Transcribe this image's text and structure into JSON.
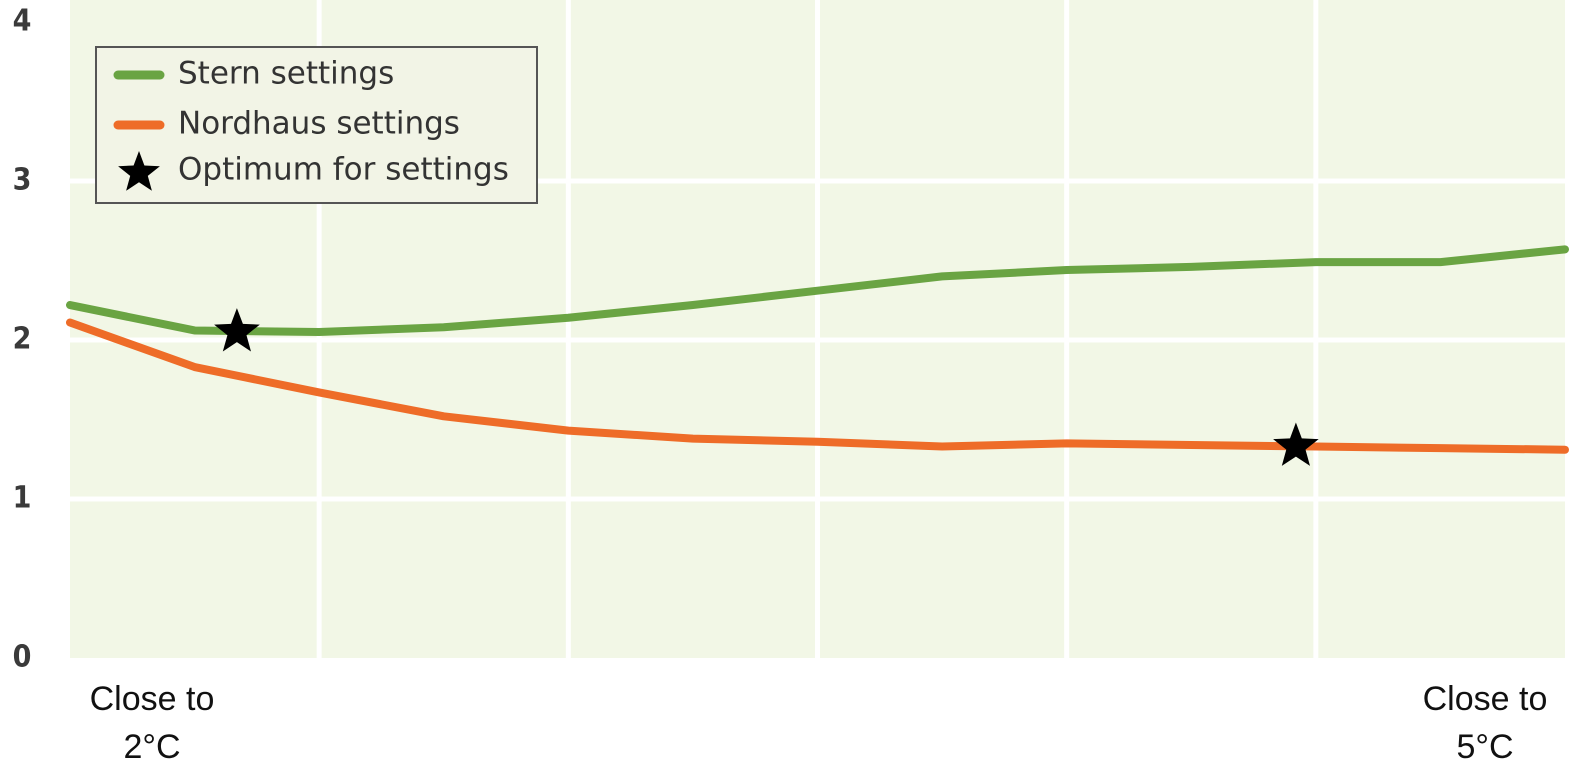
{
  "chart_data": {
    "type": "line",
    "x": [
      0,
      0.5,
      1,
      1.5,
      2,
      2.5,
      3,
      3.5,
      4,
      4.5,
      5,
      5.5,
      6
    ],
    "series": [
      {
        "name": "Stern settings",
        "color": "#6aa443",
        "values": [
          2.22,
          2.06,
          2.05,
          2.08,
          2.14,
          2.22,
          2.31,
          2.4,
          2.44,
          2.46,
          2.49,
          2.49,
          2.57
        ]
      },
      {
        "name": "Nordhaus settings",
        "color": "#ee6c28",
        "values": [
          2.11,
          1.83,
          1.67,
          1.52,
          1.43,
          1.38,
          1.36,
          1.33,
          1.35,
          1.34,
          1.33,
          1.32,
          1.31
        ]
      }
    ],
    "optima": {
      "name": "Optimum for settings",
      "color": "#000000",
      "x": [
        0.67,
        4.92
      ],
      "values": [
        2.05,
        1.33
      ]
    },
    "xlim": [
      0,
      6
    ],
    "xticks": [
      0,
      1,
      2,
      3,
      4,
      5,
      6
    ],
    "ylim": [
      0,
      4
    ],
    "yticks": [
      0,
      1,
      2,
      3,
      4
    ],
    "grid": true,
    "legend": "upper left",
    "annotations": [
      [
        "Close to",
        "2°C"
      ],
      [
        "Close to",
        "5°C"
      ]
    ]
  }
}
